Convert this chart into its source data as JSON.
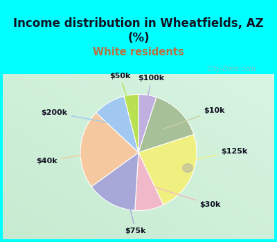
{
  "title": "Income distribution in Wheatfields, AZ\n(%)",
  "subtitle": "White residents",
  "subtitle_color": "#b87040",
  "title_color": "#111122",
  "background_cyan": "#00ffff",
  "labels": [
    "$100k",
    "$10k",
    "$125k",
    "$30k",
    "$75k",
    "$40k",
    "$200k",
    "$50k"
  ],
  "sizes": [
    5,
    15,
    23,
    8,
    14,
    22,
    9,
    4
  ],
  "colors": [
    "#c0b0e0",
    "#a8c098",
    "#f0f080",
    "#f0b8c8",
    "#a8a8d8",
    "#f5c8a0",
    "#a0c8f0",
    "#b8e050"
  ],
  "line_colors": [
    "#c0b0e0",
    "#c8d0a0",
    "#f0f080",
    "#f0b8c8",
    "#a8a8d8",
    "#f5c8a0",
    "#a0c8f0",
    "#b8e050"
  ],
  "startangle": 90,
  "watermark": "   City-Data.com",
  "label_fontsize": 8,
  "title_fontsize": 12
}
